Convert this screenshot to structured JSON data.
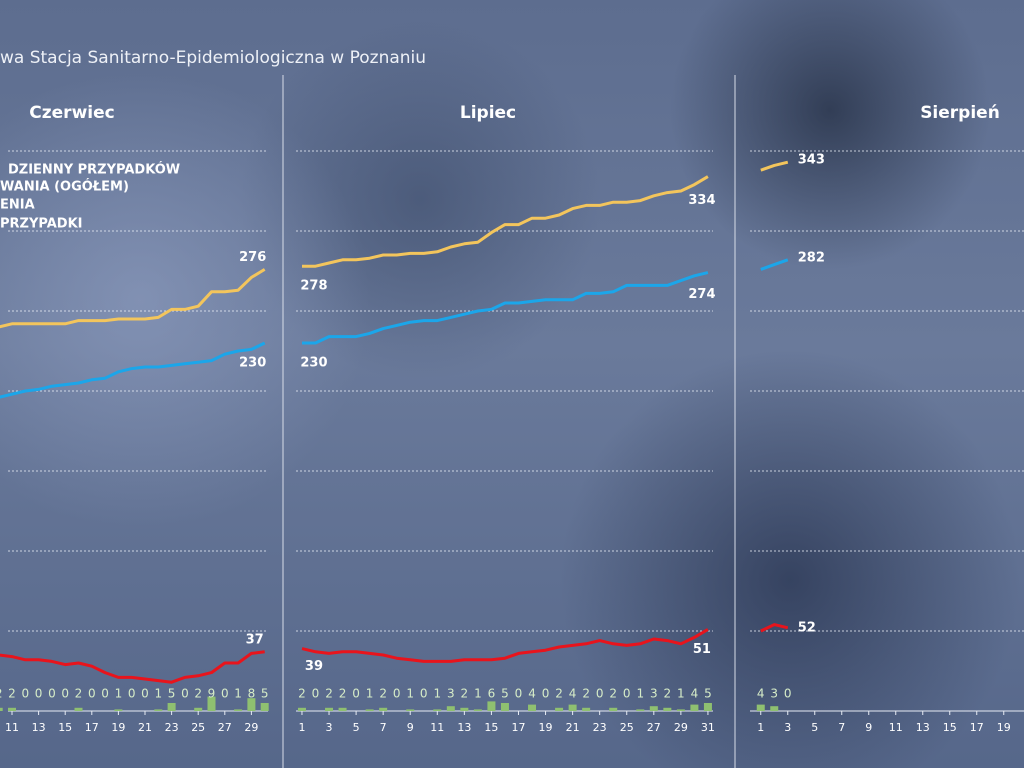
{
  "title": "wa Stacja Sanitarno-Epidemiologiczna w Poznaniu",
  "legend": [
    "DZIENNY PRZYPADKÓW",
    "WANIA (OGÓŁEM)",
    "ENIA",
    "PRZYPADKI"
  ],
  "chart_data": [
    {
      "type": "combo",
      "title": "Czerwiec",
      "x": [
        10,
        11,
        12,
        13,
        14,
        15,
        16,
        17,
        18,
        19,
        20,
        21,
        22,
        23,
        24,
        25,
        26,
        27,
        28,
        29,
        30
      ],
      "xlim": [
        10,
        31
      ],
      "xticks": [
        11,
        13,
        15,
        17,
        19,
        21,
        23,
        25,
        27,
        29
      ],
      "ylim": [
        0,
        350
      ],
      "yticks": [
        0,
        50,
        100,
        150,
        200,
        250,
        300,
        350
      ],
      "grid": true,
      "series": [
        {
          "type": "line",
          "color": "#f3c55c",
          "values": [
            240,
            242,
            242,
            242,
            242,
            242,
            244,
            244,
            244,
            245,
            245,
            245,
            246,
            251,
            251,
            253,
            262,
            262,
            263,
            271,
            276
          ]
        },
        {
          "type": "line",
          "color": "#1ba6ea",
          "values": [
            196,
            198,
            200,
            201,
            203,
            204,
            205,
            207,
            208,
            212,
            214,
            215,
            215,
            216,
            217,
            218,
            219,
            223,
            225,
            226,
            230
          ]
        },
        {
          "type": "line",
          "color": "#e8141c",
          "values": [
            35,
            34,
            32,
            32,
            31,
            29,
            30,
            28,
            24,
            21,
            21,
            20,
            19,
            18,
            21,
            22,
            24,
            30,
            30,
            36,
            37
          ]
        },
        {
          "type": "bar",
          "color": "#8fc070",
          "values": [
            2,
            2,
            0,
            0,
            0,
            0,
            2,
            0,
            0,
            1,
            0,
            0,
            1,
            5,
            0,
            2,
            9,
            0,
            1,
            8,
            5
          ]
        }
      ]
    },
    {
      "type": "combo",
      "title": "Lipiec",
      "x": [
        1,
        2,
        3,
        4,
        5,
        6,
        7,
        8,
        9,
        10,
        11,
        12,
        13,
        14,
        15,
        16,
        17,
        18,
        19,
        20,
        21,
        22,
        23,
        24,
        25,
        26,
        27,
        28,
        29,
        30,
        31
      ],
      "xlim": [
        0.5,
        31.5
      ],
      "xticks": [
        1,
        3,
        5,
        7,
        9,
        11,
        13,
        15,
        17,
        19,
        21,
        23,
        25,
        27,
        29,
        31
      ],
      "ylim": [
        0,
        350
      ],
      "yticks": [
        0,
        50,
        100,
        150,
        200,
        250,
        300,
        350
      ],
      "grid": true,
      "series": [
        {
          "type": "line",
          "color": "#f3c55c",
          "values": [
            278,
            278,
            280,
            282,
            282,
            283,
            285,
            285,
            286,
            286,
            287,
            290,
            292,
            293,
            299,
            304,
            304,
            308,
            308,
            310,
            314,
            316,
            316,
            318,
            318,
            319,
            322,
            324,
            325,
            329,
            334
          ]
        },
        {
          "type": "line",
          "color": "#1ba6ea",
          "values": [
            230,
            230,
            234,
            234,
            234,
            236,
            239,
            241,
            243,
            244,
            244,
            246,
            248,
            250,
            251,
            255,
            255,
            256,
            257,
            257,
            257,
            261,
            261,
            262,
            266,
            266,
            266,
            266,
            269,
            272,
            274
          ]
        },
        {
          "type": "line",
          "color": "#e8141c",
          "values": [
            39,
            37,
            36,
            37,
            37,
            36,
            35,
            33,
            32,
            31,
            31,
            31,
            32,
            32,
            32,
            33,
            36,
            37,
            38,
            40,
            41,
            42,
            44,
            42,
            41,
            42,
            45,
            44,
            42,
            46,
            51
          ]
        },
        {
          "type": "bar",
          "color": "#8fc070",
          "values": [
            2,
            0,
            2,
            2,
            0,
            1,
            2,
            0,
            1,
            0,
            1,
            3,
            2,
            1,
            6,
            5,
            0,
            4,
            0,
            2,
            4,
            2,
            0,
            2,
            0,
            1,
            3,
            2,
            1,
            4,
            5
          ]
        }
      ]
    },
    {
      "type": "combo",
      "title": "Sierpień",
      "x": [
        1,
        2,
        3
      ],
      "xlim": [
        0.5,
        20.5
      ],
      "xticks": [
        1,
        3,
        5,
        7,
        9,
        11,
        13,
        15,
        17,
        19
      ],
      "ylim": [
        0,
        350
      ],
      "yticks": [
        0,
        50,
        100,
        150,
        200,
        250,
        300,
        350
      ],
      "grid": true,
      "series": [
        {
          "type": "line",
          "color": "#f3c55c",
          "values": [
            338,
            341,
            343
          ]
        },
        {
          "type": "line",
          "color": "#1ba6ea",
          "values": [
            276,
            279,
            282
          ]
        },
        {
          "type": "line",
          "color": "#e8141c",
          "values": [
            50,
            54,
            52
          ]
        },
        {
          "type": "bar",
          "color": "#8fc070",
          "values": [
            4,
            3,
            0
          ]
        }
      ]
    }
  ]
}
